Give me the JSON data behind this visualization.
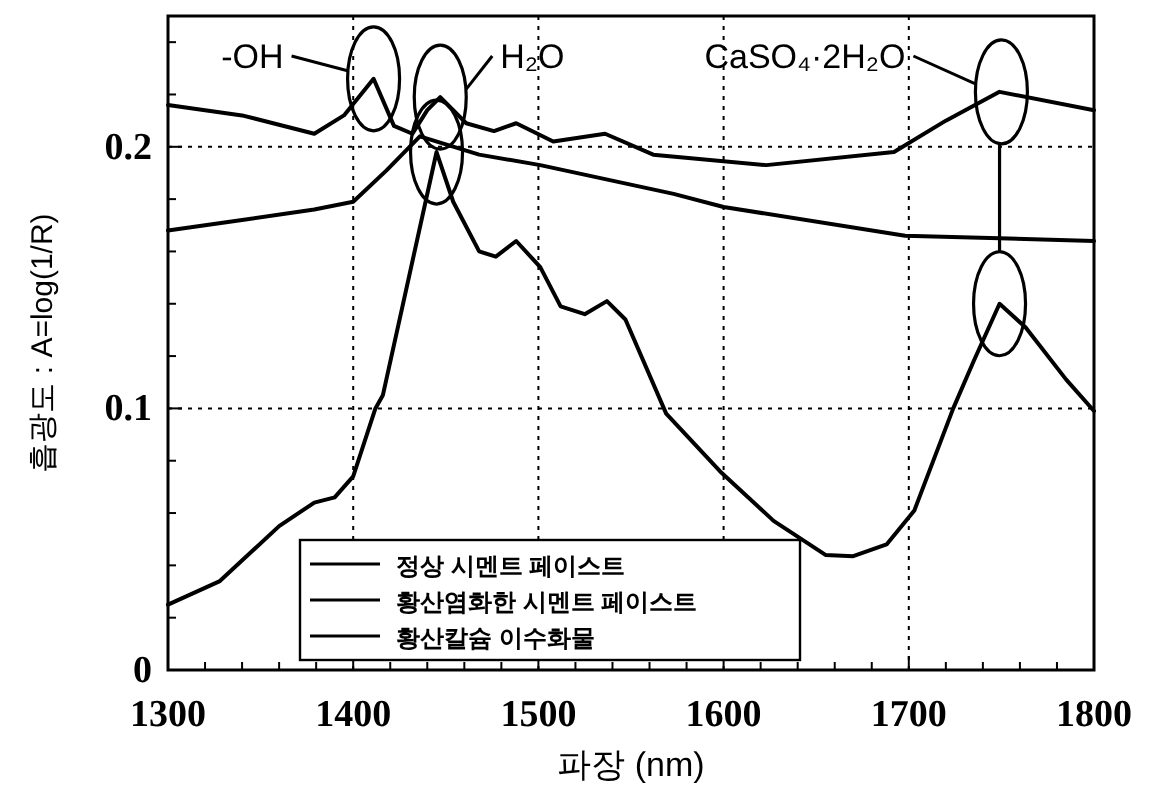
{
  "chart_data": {
    "type": "line",
    "xlabel": "파장 (nm)",
    "ylabel": "흡광도 : A=log(1/R)",
    "xlim": [
      1300,
      1800
    ],
    "ylim": [
      0,
      0.25
    ],
    "xticks": [
      1300,
      {
        "value": 1320,
        "label": null
      },
      {
        "value": 1340,
        "label": null
      },
      {
        "value": 1360,
        "label": null
      },
      {
        "value": 1380,
        "label": null
      },
      1400,
      {
        "value": 1420,
        "label": null
      },
      {
        "value": 1440,
        "label": null
      },
      {
        "value": 1460,
        "label": null
      },
      {
        "value": 1480,
        "label": null
      },
      1500,
      {
        "value": 1520,
        "label": null
      },
      {
        "value": 1540,
        "label": null
      },
      {
        "value": 1560,
        "label": null
      },
      {
        "value": 1580,
        "label": null
      },
      1600,
      {
        "value": 1620,
        "label": null
      },
      {
        "value": 1640,
        "label": null
      },
      {
        "value": 1660,
        "label": null
      },
      {
        "value": 1680,
        "label": null
      },
      1700,
      {
        "value": 1720,
        "label": null
      },
      {
        "value": 1740,
        "label": null
      },
      {
        "value": 1760,
        "label": null
      },
      {
        "value": 1780,
        "label": null
      },
      1800
    ],
    "yticks": [
      0,
      {
        "value": 0.02,
        "label": null
      },
      {
        "value": 0.04,
        "label": null
      },
      {
        "value": 0.06,
        "label": null
      },
      {
        "value": 0.08,
        "label": null
      },
      0.1,
      {
        "value": 0.12,
        "label": null
      },
      {
        "value": 0.14,
        "label": null
      },
      {
        "value": 0.16,
        "label": null
      },
      {
        "value": 0.18,
        "label": null
      },
      0.2,
      {
        "value": 0.22,
        "label": null
      },
      {
        "value": 0.24,
        "label": null
      }
    ],
    "grid": true,
    "legend": "bottom",
    "marker": "none",
    "line_style": "solid",
    "series": [
      {
        "name": "정상 시멘트 페이스트",
        "color": "#000000",
        "x": [
          1300,
          1340,
          1379,
          1400,
          1418,
          1436,
          1468,
          1501,
          1573,
          1600,
          1698,
          1800
        ],
        "values": [
          0.168,
          0.172,
          0.176,
          0.179,
          0.191,
          0.204,
          0.197,
          0.193,
          0.182,
          0.177,
          0.166,
          0.164
        ]
      },
      {
        "name": "황산염화한 시멘트 페이스트",
        "color": "#000000",
        "x": [
          1300,
          1340,
          1379,
          1395,
          1411,
          1422,
          1432,
          1440,
          1447,
          1461,
          1476,
          1488,
          1508,
          1536,
          1562,
          1623,
          1692,
          1720,
          1749,
          1800
        ],
        "values": [
          0.216,
          0.212,
          0.205,
          0.212,
          0.226,
          0.208,
          0.205,
          0.214,
          0.219,
          0.209,
          0.206,
          0.209,
          0.202,
          0.205,
          0.197,
          0.193,
          0.198,
          0.21,
          0.221,
          0.214
        ]
      },
      {
        "name": "황산칼슘 이수화물",
        "color": "#000000",
        "x": [
          1300,
          1328,
          1360,
          1379,
          1390,
          1400,
          1412,
          1416,
          1445,
          1454,
          1468,
          1477,
          1488,
          1501,
          1512,
          1525,
          1537,
          1547,
          1569,
          1598,
          1627,
          1655,
          1670,
          1688,
          1703,
          1724,
          1735,
          1749,
          1763,
          1785,
          1800
        ],
        "values": [
          0.025,
          0.034,
          0.055,
          0.064,
          0.066,
          0.074,
          0.1,
          0.105,
          0.198,
          0.179,
          0.16,
          0.158,
          0.164,
          0.154,
          0.139,
          0.136,
          0.141,
          0.134,
          0.098,
          0.076,
          0.057,
          0.044,
          0.0435,
          0.048,
          0.061,
          0.1,
          0.118,
          0.14,
          0.131,
          0.111,
          0.099
        ]
      }
    ],
    "annotations": [
      {
        "text": "-OH",
        "x": 1411,
        "y": 0.226
      },
      {
        "text": "H₂O",
        "x": 1447,
        "y": 0.219
      },
      {
        "text": "CaSO₄·2H₂O",
        "x": 1750,
        "y": 0.221
      }
    ]
  }
}
